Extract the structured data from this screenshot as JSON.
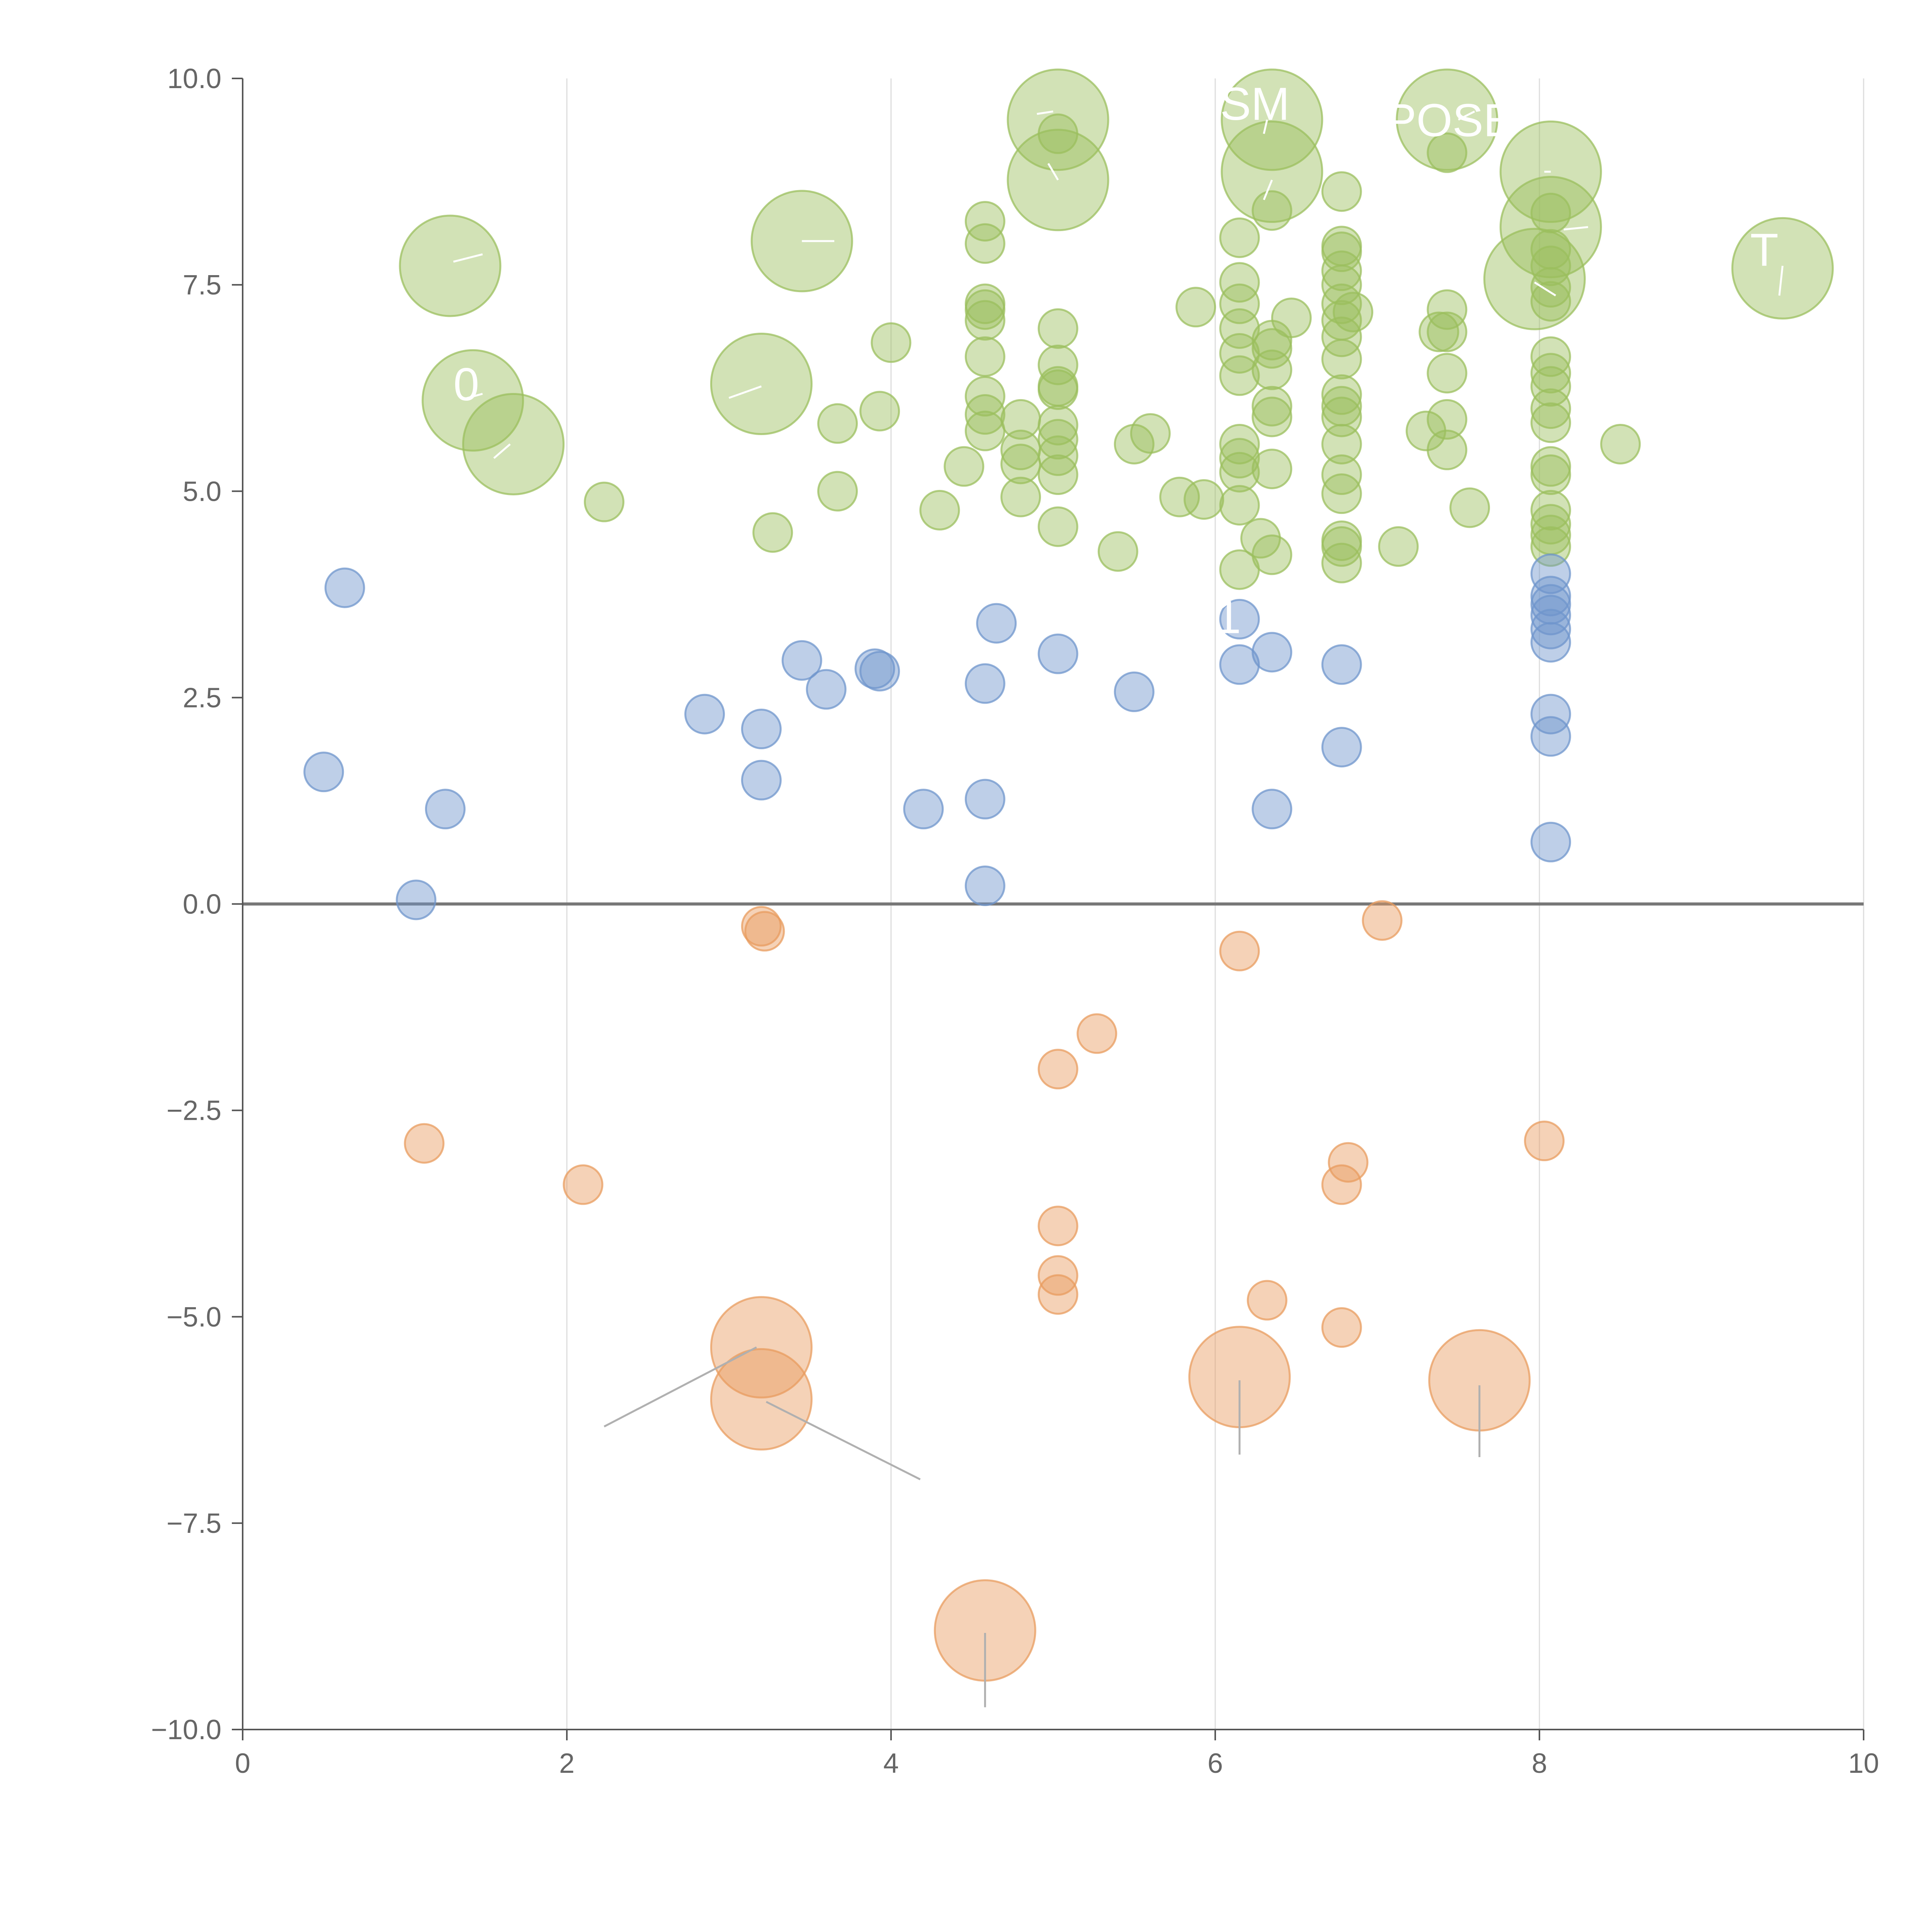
{
  "chart_data": {
    "type": "scatter",
    "title": "",
    "xlabel": "",
    "ylabel": "",
    "xlim": [
      0,
      10
    ],
    "ylim": [
      -10,
      10
    ],
    "x_ticks": [
      "0",
      "2",
      "4",
      "6",
      "8",
      "10"
    ],
    "y_ticks": [
      "10.0",
      "7.5",
      "5.0",
      "2.5",
      "0.0",
      "−2.5",
      "−5.0",
      "−7.5",
      "−10.0"
    ],
    "x_tick_values": [
      0,
      2,
      4,
      6,
      8,
      10
    ],
    "y_tick_values": [
      10,
      7.5,
      5,
      2.5,
      0,
      -2.5,
      -5,
      -7.5,
      -10
    ],
    "grid": "vertical only",
    "legend": "none",
    "colors": {
      "green": "#9bbf5e",
      "blue": "#6f95cc",
      "orange": "#e89c5f",
      "zero_line": "#777777",
      "axis": "#555555",
      "grid": "#dddddd",
      "leader_line": "#b0b0b0"
    },
    "size_scale": {
      "s": 1,
      "m": 1.6,
      "l": 2.6
    },
    "series": [
      {
        "color": "green",
        "points": [
          [
            1.28,
            7.73,
            "l"
          ],
          [
            1.42,
            6.1,
            "l"
          ],
          [
            1.67,
            5.57,
            "l"
          ],
          [
            2.23,
            4.87,
            "s"
          ],
          [
            3.27,
            4.5,
            "s"
          ],
          [
            3.2,
            6.3,
            "l"
          ],
          [
            3.45,
            8.03,
            "l"
          ],
          [
            3.67,
            5.82,
            "s"
          ],
          [
            3.67,
            5.0,
            "s"
          ],
          [
            3.93,
            5.97,
            "s"
          ],
          [
            4.0,
            6.8,
            "s"
          ],
          [
            4.3,
            4.77,
            "s"
          ],
          [
            4.45,
            5.3,
            "s"
          ],
          [
            4.58,
            8.27,
            "s"
          ],
          [
            4.58,
            8.0,
            "s"
          ],
          [
            4.58,
            7.27,
            "s"
          ],
          [
            4.58,
            7.2,
            "s"
          ],
          [
            4.58,
            7.07,
            "s"
          ],
          [
            4.58,
            6.63,
            "s"
          ],
          [
            4.58,
            6.15,
            "s"
          ],
          [
            4.58,
            5.93,
            "s"
          ],
          [
            4.58,
            5.73,
            "s"
          ],
          [
            4.8,
            5.87,
            "s"
          ],
          [
            4.8,
            5.5,
            "s"
          ],
          [
            4.8,
            5.33,
            "s"
          ],
          [
            4.8,
            4.93,
            "s"
          ],
          [
            5.03,
            9.5,
            "l"
          ],
          [
            5.03,
            9.33,
            "s"
          ],
          [
            5.03,
            8.77,
            "l"
          ],
          [
            5.03,
            6.97,
            "s"
          ],
          [
            5.03,
            6.53,
            "s"
          ],
          [
            5.03,
            6.27,
            "s"
          ],
          [
            5.03,
            6.23,
            "s"
          ],
          [
            5.03,
            5.8,
            "s"
          ],
          [
            5.03,
            5.63,
            "s"
          ],
          [
            5.03,
            5.43,
            "s"
          ],
          [
            5.03,
            5.2,
            "s"
          ],
          [
            5.03,
            4.57,
            "s"
          ],
          [
            5.4,
            4.27,
            "s"
          ],
          [
            5.5,
            5.57,
            "s"
          ],
          [
            5.6,
            5.7,
            "s"
          ],
          [
            5.78,
            4.93,
            "s"
          ],
          [
            5.88,
            7.23,
            "s"
          ],
          [
            5.93,
            4.9,
            "s"
          ],
          [
            6.15,
            8.07,
            "s"
          ],
          [
            6.15,
            7.53,
            "s"
          ],
          [
            6.15,
            7.27,
            "s"
          ],
          [
            6.15,
            6.97,
            "s"
          ],
          [
            6.15,
            6.67,
            "s"
          ],
          [
            6.15,
            6.4,
            "s"
          ],
          [
            6.15,
            5.57,
            "s"
          ],
          [
            6.15,
            5.4,
            "s"
          ],
          [
            6.15,
            5.23,
            "s"
          ],
          [
            6.15,
            4.83,
            "s"
          ],
          [
            6.15,
            4.05,
            "s"
          ],
          [
            6.28,
            4.43,
            "s"
          ],
          [
            6.35,
            9.5,
            "l"
          ],
          [
            6.35,
            8.87,
            "l"
          ],
          [
            6.35,
            8.4,
            "s"
          ],
          [
            6.35,
            6.83,
            "s"
          ],
          [
            6.35,
            6.73,
            "s"
          ],
          [
            6.35,
            6.47,
            "s"
          ],
          [
            6.35,
            6.03,
            "s"
          ],
          [
            6.35,
            5.9,
            "s"
          ],
          [
            6.35,
            5.27,
            "s"
          ],
          [
            6.35,
            4.23,
            "s"
          ],
          [
            6.47,
            7.1,
            "s"
          ],
          [
            6.78,
            8.63,
            "s"
          ],
          [
            6.78,
            7.97,
            "s"
          ],
          [
            6.78,
            7.9,
            "s"
          ],
          [
            6.78,
            7.67,
            "s"
          ],
          [
            6.78,
            7.5,
            "s"
          ],
          [
            6.78,
            7.27,
            "s"
          ],
          [
            6.78,
            7.07,
            "s"
          ],
          [
            6.78,
            6.87,
            "s"
          ],
          [
            6.78,
            6.6,
            "s"
          ],
          [
            6.78,
            6.17,
            "s"
          ],
          [
            6.78,
            6.03,
            "s"
          ],
          [
            6.78,
            5.9,
            "s"
          ],
          [
            6.78,
            5.57,
            "s"
          ],
          [
            6.78,
            5.2,
            "s"
          ],
          [
            6.78,
            4.97,
            "s"
          ],
          [
            6.78,
            4.4,
            "s"
          ],
          [
            6.78,
            4.33,
            "s"
          ],
          [
            6.78,
            4.13,
            "s"
          ],
          [
            6.85,
            7.17,
            "s"
          ],
          [
            7.13,
            4.33,
            "s"
          ],
          [
            7.3,
            5.73,
            "s"
          ],
          [
            7.38,
            6.93,
            "s"
          ],
          [
            7.43,
            9.5,
            "l"
          ],
          [
            7.43,
            9.1,
            "s"
          ],
          [
            7.43,
            7.2,
            "s"
          ],
          [
            7.43,
            6.93,
            "s"
          ],
          [
            7.43,
            6.43,
            "s"
          ],
          [
            7.43,
            5.87,
            "s"
          ],
          [
            7.43,
            5.5,
            "s"
          ],
          [
            7.57,
            4.8,
            "s"
          ],
          [
            7.97,
            7.57,
            "l"
          ],
          [
            8.07,
            8.87,
            "l"
          ],
          [
            8.07,
            8.2,
            "l"
          ],
          [
            8.07,
            8.37,
            "s"
          ],
          [
            8.07,
            7.93,
            "s"
          ],
          [
            8.07,
            7.73,
            "s"
          ],
          [
            8.07,
            7.47,
            "s"
          ],
          [
            8.07,
            7.3,
            "s"
          ],
          [
            8.07,
            6.63,
            "s"
          ],
          [
            8.07,
            6.43,
            "s"
          ],
          [
            8.07,
            6.27,
            "s"
          ],
          [
            8.07,
            6.0,
            "s"
          ],
          [
            8.07,
            5.83,
            "s"
          ],
          [
            8.07,
            5.3,
            "s"
          ],
          [
            8.07,
            5.2,
            "s"
          ],
          [
            8.07,
            4.77,
            "s"
          ],
          [
            8.07,
            4.6,
            "s"
          ],
          [
            8.07,
            4.47,
            "s"
          ],
          [
            8.07,
            4.33,
            "s"
          ],
          [
            8.5,
            5.57,
            "s"
          ],
          [
            9.5,
            7.7,
            "l"
          ]
        ]
      },
      {
        "color": "blue",
        "points": [
          [
            0.5,
            1.6,
            "s"
          ],
          [
            0.63,
            3.83,
            "s"
          ],
          [
            1.07,
            0.05,
            "s"
          ],
          [
            1.25,
            1.15,
            "s"
          ],
          [
            2.85,
            2.3,
            "s"
          ],
          [
            3.2,
            2.12,
            "s"
          ],
          [
            3.2,
            1.5,
            "s"
          ],
          [
            3.45,
            2.95,
            "s"
          ],
          [
            3.6,
            2.6,
            "s"
          ],
          [
            3.9,
            2.85,
            "s"
          ],
          [
            3.93,
            2.82,
            "s"
          ],
          [
            4.2,
            1.15,
            "s"
          ],
          [
            4.58,
            2.67,
            "s"
          ],
          [
            4.58,
            1.27,
            "s"
          ],
          [
            4.58,
            0.22,
            "s"
          ],
          [
            4.65,
            3.4,
            "s"
          ],
          [
            5.03,
            3.03,
            "s"
          ],
          [
            5.5,
            2.57,
            "s"
          ],
          [
            6.15,
            3.45,
            "s"
          ],
          [
            6.15,
            2.9,
            "s"
          ],
          [
            6.35,
            3.05,
            "s"
          ],
          [
            6.35,
            1.15,
            "s"
          ],
          [
            6.78,
            2.9,
            "s"
          ],
          [
            6.78,
            1.9,
            "s"
          ],
          [
            8.07,
            4.0,
            "s"
          ],
          [
            8.07,
            3.73,
            "s"
          ],
          [
            8.07,
            3.63,
            "s"
          ],
          [
            8.07,
            3.5,
            "s"
          ],
          [
            8.07,
            3.33,
            "s"
          ],
          [
            8.07,
            3.17,
            "s"
          ],
          [
            8.07,
            2.3,
            "s"
          ],
          [
            8.07,
            2.03,
            "s"
          ],
          [
            8.07,
            0.75,
            "s"
          ]
        ]
      },
      {
        "color": "orange",
        "points": [
          [
            1.12,
            -2.9,
            "s"
          ],
          [
            2.1,
            -3.4,
            "s"
          ],
          [
            3.2,
            -0.27,
            "s"
          ],
          [
            3.22,
            -0.33,
            "s"
          ],
          [
            3.2,
            -5.37,
            "l"
          ],
          [
            3.2,
            -6.0,
            "l"
          ],
          [
            4.58,
            -8.8,
            "l"
          ],
          [
            5.03,
            -2.0,
            "s"
          ],
          [
            5.03,
            -3.9,
            "s"
          ],
          [
            5.03,
            -4.5,
            "s"
          ],
          [
            5.03,
            -4.73,
            "s"
          ],
          [
            5.27,
            -1.57,
            "s"
          ],
          [
            6.15,
            -0.57,
            "s"
          ],
          [
            6.15,
            -5.73,
            "l"
          ],
          [
            6.32,
            -4.8,
            "s"
          ],
          [
            6.78,
            -3.4,
            "s"
          ],
          [
            6.78,
            -5.13,
            "s"
          ],
          [
            6.82,
            -3.13,
            "s"
          ],
          [
            7.03,
            -0.2,
            "s"
          ],
          [
            7.63,
            -5.77,
            "l"
          ],
          [
            8.03,
            -2.87,
            "s"
          ]
        ]
      }
    ],
    "leader_lines": [
      [
        1.3,
        7.78,
        1.48,
        7.87
      ],
      [
        1.48,
        6.18,
        1.37,
        6.12
      ],
      [
        1.65,
        5.57,
        1.55,
        5.4
      ],
      [
        3.2,
        6.27,
        3.0,
        6.13
      ],
      [
        3.45,
        8.03,
        3.65,
        8.03
      ],
      [
        4.9,
        9.57,
        5.0,
        9.6
      ],
      [
        4.97,
        8.97,
        5.03,
        8.77
      ],
      [
        6.3,
        9.33,
        6.32,
        9.5
      ],
      [
        6.35,
        8.77,
        6.3,
        8.53
      ],
      [
        7.5,
        9.5,
        7.6,
        9.6
      ],
      [
        8.07,
        8.87,
        8.03,
        8.87
      ],
      [
        8.15,
        8.17,
        8.3,
        8.2
      ],
      [
        7.97,
        7.53,
        8.1,
        7.37
      ],
      [
        9.5,
        7.73,
        9.48,
        7.37
      ],
      [
        3.17,
        -5.37,
        2.23,
        -6.33
      ],
      [
        3.23,
        -6.03,
        4.18,
        -6.97
      ],
      [
        6.15,
        -5.77,
        6.15,
        -6.67
      ],
      [
        7.63,
        -5.83,
        7.63,
        -6.7
      ],
      [
        4.58,
        -8.83,
        4.58,
        -9.73
      ]
    ],
    "annotations": [
      {
        "text": "SM",
        "x": 6.03,
        "y": 9.5
      },
      {
        "text": "POSE",
        "x": 7.05,
        "y": 9.3
      },
      {
        "text": "T",
        "x": 9.3,
        "y": 7.73
      },
      {
        "text": "0",
        "x": 1.3,
        "y": 6.1
      },
      {
        "text": "1",
        "x": 6.0,
        "y": 3.28
      }
    ]
  }
}
